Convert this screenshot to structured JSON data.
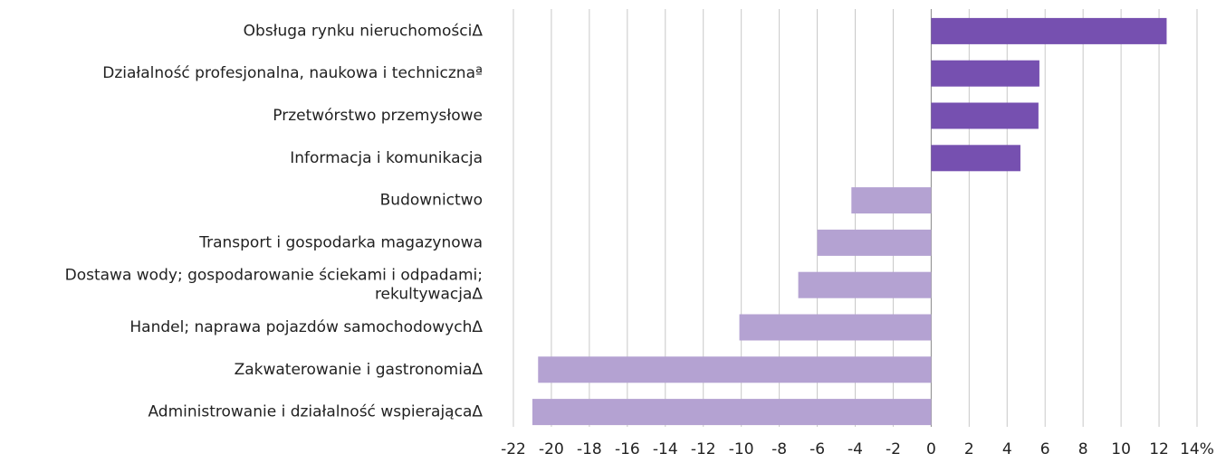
{
  "chart_data": {
    "type": "barh",
    "categories": [
      "Obsługa rynku nieruchomościΔ",
      "Działalność profesjonalna, naukowa i technicznaª",
      "Przetwórstwo przemysłowe",
      "Informacja i komunikacja",
      "Budownictwo",
      "Transport i gospodarka magazynowa",
      "Dostawa wody; gospodarowanie ściekami i odpadami;\nrekultywacjaΔ",
      "Handel; naprawa pojazdów samochodowychΔ",
      "Zakwaterowanie i gastronomiaΔ",
      "Administrowanie i działalność wspierającaΔ"
    ],
    "values": [
      12.4,
      5.7,
      5.65,
      4.7,
      -4.2,
      -6.0,
      -7.0,
      -10.1,
      -20.7,
      -21.0
    ],
    "colors": [
      "#7650b0",
      "#7650b0",
      "#7650b0",
      "#7650b0",
      "#b4a2d2",
      "#b4a2d2",
      "#b4a2d2",
      "#b4a2d2",
      "#b4a2d2",
      "#b4a2d2"
    ],
    "xlim": [
      -22,
      14
    ],
    "xticks": [
      -22,
      -20,
      -18,
      -16,
      -14,
      -12,
      -10,
      -8,
      -6,
      -4,
      -2,
      0,
      2,
      4,
      6,
      8,
      10,
      12,
      {
        "value": 14,
        "label": "14%"
      }
    ],
    "grid": true
  }
}
